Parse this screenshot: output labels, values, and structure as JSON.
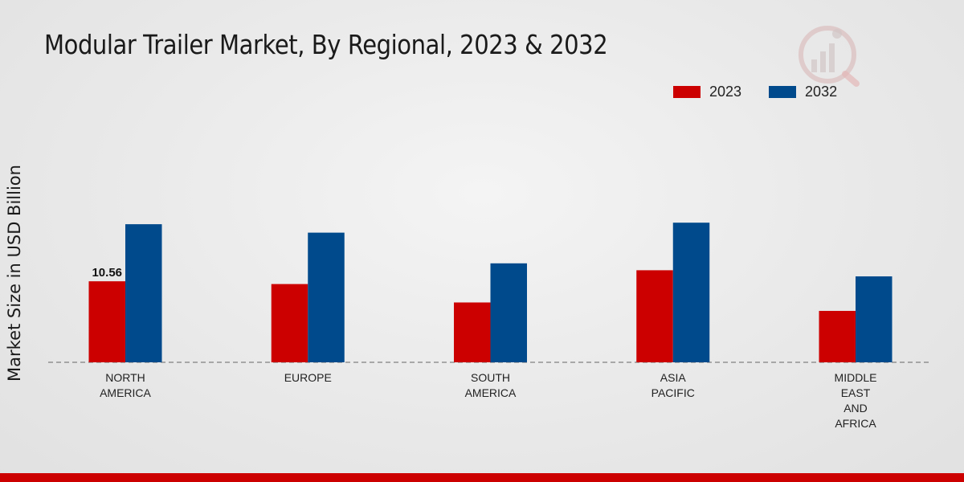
{
  "chart_data": {
    "type": "bar",
    "title": "Modular Trailer Market, By Regional, 2023 & 2032",
    "xlabel": "",
    "ylabel": "Market Size in USD Billion",
    "categories": [
      [
        "NORTH",
        "AMERICA"
      ],
      [
        "EUROPE"
      ],
      [
        "SOUTH",
        "AMERICA"
      ],
      [
        "ASIA",
        "PACIFIC"
      ],
      [
        "MIDDLE",
        "EAST",
        "AND",
        "AFRICA"
      ]
    ],
    "series": [
      {
        "name": "2023",
        "color": "#cc0000",
        "values": [
          10.56,
          10.2,
          7.8,
          12.0,
          6.7
        ]
      },
      {
        "name": "2032",
        "color": "#004a8c",
        "values": [
          18.0,
          16.9,
          12.9,
          18.2,
          11.2
        ]
      }
    ],
    "data_labels": [
      {
        "series": 0,
        "index": 0,
        "text": "10.56"
      }
    ],
    "ylim": [
      0,
      30
    ],
    "legend_position": "top-right",
    "grid": false
  }
}
